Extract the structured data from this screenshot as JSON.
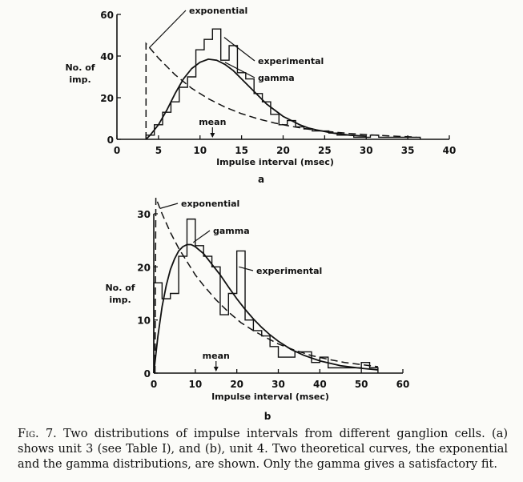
{
  "chart_data": [
    {
      "type": "line",
      "panel_label": "a",
      "xlabel": "Impulse interval (msec)",
      "ylabel": "No. of imp.",
      "xlim": [
        0,
        40
      ],
      "ylim": [
        0,
        60
      ],
      "xticks": [
        0,
        5,
        10,
        15,
        20,
        25,
        30,
        35,
        40
      ],
      "yticks": [
        0,
        20,
        40,
        60
      ],
      "mean": 11.5,
      "mean_label": "mean",
      "series": [
        {
          "name": "experimental",
          "style": "step",
          "x": [
            3.5,
            4.5,
            5.5,
            6.5,
            7.5,
            8.5,
            9.5,
            10.5,
            11.5,
            12.5,
            13.5,
            14.5,
            15.5,
            16.5,
            17.5,
            18.5,
            19.5,
            20.5,
            21.5,
            22.5,
            23.5,
            24.5,
            25.5,
            26.5,
            27.5,
            28.5,
            29.5,
            30.5,
            31.5,
            32.5,
            33.5,
            34.5,
            35.5,
            36.5
          ],
          "y": [
            2,
            7,
            13,
            18,
            25,
            30,
            43,
            48,
            53,
            38,
            45,
            32,
            29,
            22,
            18,
            12,
            7,
            9,
            6,
            5,
            4,
            4,
            3,
            2,
            2,
            1,
            1,
            2,
            1,
            1,
            1,
            1,
            1,
            0
          ]
        },
        {
          "name": "gamma",
          "style": "solid",
          "x": [
            3.5,
            4,
            5,
            6,
            7,
            8,
            9,
            10,
            11,
            12,
            13,
            14,
            15,
            16,
            17,
            18,
            19,
            20,
            21,
            22,
            23,
            24,
            26,
            28,
            30
          ],
          "y": [
            0,
            2,
            7,
            14,
            22,
            29,
            34,
            37,
            38.5,
            38,
            36,
            33,
            29,
            25,
            21,
            17,
            14,
            11,
            9,
            7,
            5.5,
            4.5,
            3,
            2,
            1.5
          ]
        },
        {
          "name": "exponential",
          "style": "dashed",
          "x": [
            3.5,
            3.5,
            5,
            7,
            9,
            11,
            13,
            15,
            17,
            19,
            21,
            23,
            25,
            28,
            31,
            34,
            36
          ],
          "y": [
            0,
            46,
            39,
            31,
            24.5,
            19.5,
            15.5,
            12.3,
            9.8,
            7.8,
            6.2,
            4.9,
            3.9,
            2.8,
            2,
            1.4,
            1.1
          ]
        }
      ]
    },
    {
      "type": "line",
      "panel_label": "b",
      "xlabel": "Impulse interval (msec)",
      "ylabel": "No. of imp.",
      "xlim": [
        0,
        60
      ],
      "ylim": [
        0,
        30
      ],
      "xticks": [
        0,
        10,
        20,
        30,
        40,
        50,
        60
      ],
      "yticks": [
        0,
        10,
        20,
        30
      ],
      "mean": 15,
      "mean_label": "mean",
      "series": [
        {
          "name": "experimental",
          "style": "step",
          "x": [
            0,
            2,
            4,
            6,
            8,
            10,
            12,
            14,
            16,
            18,
            20,
            22,
            24,
            26,
            28,
            30,
            32,
            34,
            36,
            38,
            40,
            42,
            44,
            46,
            48,
            50,
            52,
            54
          ],
          "y": [
            17,
            14,
            15,
            22,
            29,
            24,
            22,
            20,
            11,
            15,
            23,
            10,
            8,
            7,
            5,
            3,
            3,
            4,
            4,
            2,
            3,
            1,
            1,
            1,
            1,
            2,
            1,
            0
          ]
        },
        {
          "name": "gamma",
          "style": "solid",
          "x": [
            0,
            1,
            2,
            3,
            4,
            5,
            6,
            7,
            8,
            9,
            10,
            12,
            14,
            16,
            18,
            20,
            22,
            24,
            26,
            28,
            30,
            33,
            36,
            40,
            45,
            50,
            54
          ],
          "y": [
            0,
            7,
            12.5,
            16.5,
            19.5,
            21.5,
            23,
            23.8,
            24.2,
            24.2,
            23.8,
            22.5,
            20.5,
            18.5,
            16.2,
            14,
            12,
            10.2,
            8.6,
            7.2,
            6,
            4.5,
            3.4,
            2.3,
            1.4,
            0.9,
            0.6
          ]
        },
        {
          "name": "exponential",
          "style": "dashed",
          "x": [
            0.3,
            0.5,
            1,
            2,
            4,
            6,
            8,
            10,
            12,
            15,
            18,
            21,
            24,
            27,
            30,
            34,
            38,
            42,
            46,
            50,
            54
          ],
          "y": [
            0,
            33,
            32,
            30,
            26.5,
            23.5,
            21,
            18.5,
            16.5,
            13.8,
            11.5,
            9.5,
            8,
            6.7,
            5.5,
            4.3,
            3.3,
            2.6,
            2,
            1.6,
            1.2
          ]
        }
      ]
    }
  ],
  "caption": {
    "fig_label": "Fig. 7.",
    "text": "Two distributions of impulse intervals from different ganglion cells. (a) shows unit 3 (see Table I), and (b), unit 4. Two theoretical curves, the exponential and the gamma distributions, are shown. Only the gamma gives a satisfactory fit."
  }
}
